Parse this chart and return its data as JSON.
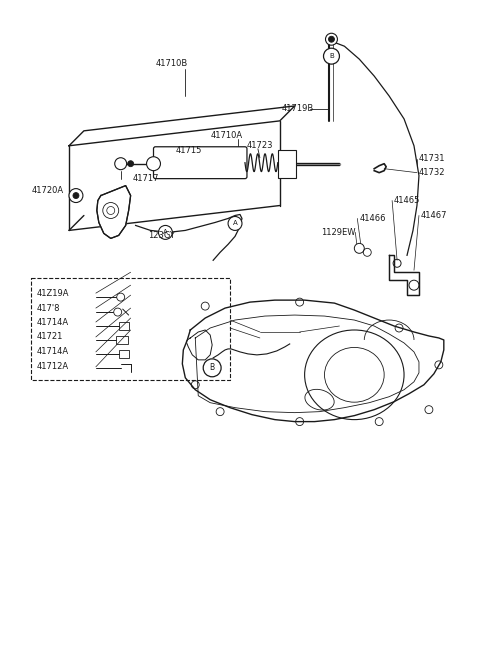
{
  "bg_color": "#ffffff",
  "lc": "#1a1a1a",
  "figsize": [
    4.8,
    6.57
  ],
  "dpi": 100,
  "xlim": [
    0,
    480
  ],
  "ylim": [
    0,
    657
  ]
}
